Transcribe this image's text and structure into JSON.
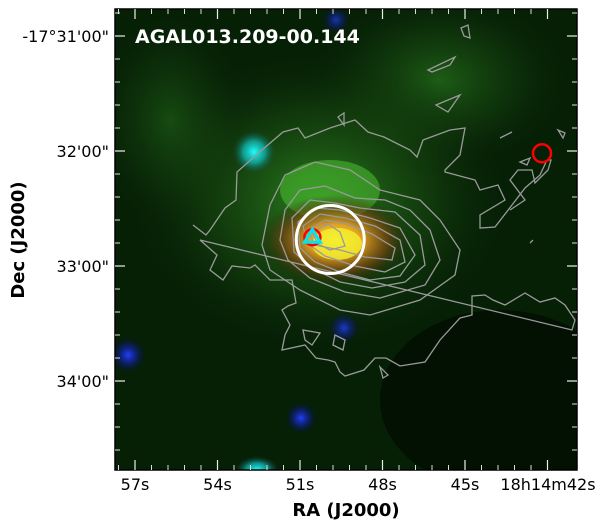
{
  "chart_data": {
    "type": "image",
    "title": "AGAL013.209-00.144",
    "xlabel": "RA (J2000)",
    "ylabel": "Dec (J2000)",
    "x_ticks": [
      {
        "sec": 57,
        "label": "57s"
      },
      {
        "sec": 54,
        "label": "54s"
      },
      {
        "sec": 51,
        "label": "51s"
      },
      {
        "sec": 48,
        "label": "48s"
      },
      {
        "sec": 45,
        "label": "45s"
      },
      {
        "sec": 42,
        "label": "18h14m42s"
      }
    ],
    "y_ticks": [
      {
        "arcmin": 31,
        "label": "-17°31'00\""
      },
      {
        "arcmin": 32,
        "label": "32'00\""
      },
      {
        "arcmin": 33,
        "label": "33'00\""
      },
      {
        "arcmin": 34,
        "label": "34'00\""
      }
    ],
    "markers": [
      {
        "kind": "circle",
        "color": "#ffffff",
        "ra_sec": 49.9,
        "dec_arcmin": 32.77
      },
      {
        "kind": "circle",
        "color": "#ff0000",
        "ra_sec": 50.55,
        "dec_arcmin": 32.75
      },
      {
        "kind": "triangle",
        "color": "#00e5ee",
        "ra_sec": 50.55,
        "dec_arcmin": 32.75
      },
      {
        "kind": "circle",
        "color": "#ff0000",
        "ra_sec": 42.2,
        "dec_arcmin": 32.02
      }
    ],
    "contours": {
      "color": "#9a9a9a",
      "levels_shown": 8
    },
    "colors": {
      "red": "#ff8800",
      "green": "#3aa82a",
      "blue": "#1a33ff",
      "background": "#041a06"
    }
  }
}
